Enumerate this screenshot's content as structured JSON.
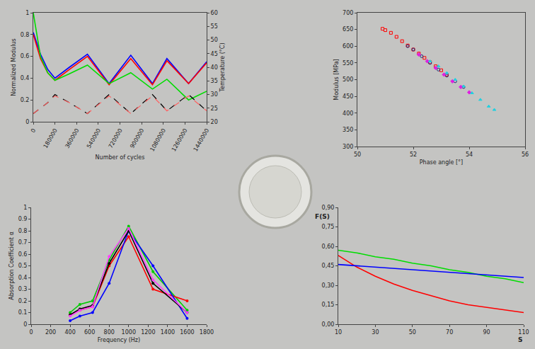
{
  "chart_data": [
    {
      "type": "line",
      "x_label": "Number of cycles",
      "y_label": "Normalized Modulus",
      "y2_label": "Temperature (°C)",
      "x": [
        0,
        60000,
        120000,
        180000,
        300000,
        450000,
        630000,
        810000,
        990000,
        1110000,
        1290000,
        1440000
      ],
      "series": [
        {
          "color": "#0000ff",
          "values": [
            0.82,
            0.62,
            0.48,
            0.4,
            0.5,
            0.62,
            0.35,
            0.61,
            0.35,
            0.58,
            0.35,
            0.55
          ]
        },
        {
          "color": "#ff0000",
          "values": [
            0.8,
            0.58,
            0.45,
            0.38,
            0.48,
            0.6,
            0.34,
            0.58,
            0.34,
            0.56,
            0.35,
            0.54
          ]
        },
        {
          "color": "#00dd00",
          "values": [
            1.0,
            0.6,
            0.45,
            0.38,
            0.44,
            0.52,
            0.35,
            0.45,
            0.3,
            0.39,
            0.2,
            0.28
          ]
        },
        {
          "color": "#000000",
          "axis": "y2",
          "line_style": "dashed",
          "values": [
            23,
            25,
            27,
            30,
            27,
            23,
            30,
            23,
            30,
            24,
            30,
            24
          ]
        },
        {
          "color": "#ff6060",
          "axis": "y2",
          "line_style": "dashed",
          "values": [
            23,
            25,
            27,
            29.5,
            27,
            23,
            29.5,
            23,
            29.5,
            24,
            29.5,
            24
          ]
        }
      ],
      "xlim": [
        0,
        1440000
      ],
      "xticks": [
        0,
        180000,
        360000,
        540000,
        720000,
        900000,
        1080000,
        1260000,
        1440000
      ],
      "ylim": [
        0,
        1
      ],
      "yticks": [
        0,
        0.2,
        0.4,
        0.6,
        0.8,
        1
      ],
      "y2lim": [
        20,
        60
      ],
      "y2ticks": [
        20,
        25,
        30,
        35,
        40,
        45,
        50,
        55,
        60
      ],
      "grid": false
    },
    {
      "type": "scatter",
      "x_label": "Phase angle [°]",
      "y_label": "Modulus [MPa]",
      "series": [
        {
          "color": "#ff0000",
          "marker": "square-open",
          "x": [
            50.9,
            51.0,
            51.2,
            51.4,
            51.6,
            51.8,
            52.0,
            52.2,
            52.4,
            52.6,
            52.8,
            53.0,
            53.2
          ],
          "values": [
            652,
            648,
            640,
            628,
            615,
            602,
            590,
            578,
            565,
            552,
            540,
            528,
            515
          ]
        },
        {
          "color": "#1f2a7a",
          "marker": "circle-open",
          "x": [
            51.8,
            52.0,
            52.3,
            52.6,
            52.9,
            53.2,
            53.5,
            53.8
          ],
          "values": [
            600,
            590,
            570,
            550,
            530,
            512,
            495,
            478
          ]
        },
        {
          "color": "#e020e0",
          "marker": "diamond",
          "x": [
            52.2,
            52.5,
            52.8,
            53.1,
            53.4,
            53.7,
            54.0
          ],
          "values": [
            575,
            555,
            535,
            515,
            495,
            478,
            462
          ]
        },
        {
          "color": "#20d0e0",
          "marker": "triangle-up",
          "x": [
            52.6,
            52.9,
            53.2,
            53.5,
            53.8,
            54.1,
            54.4,
            54.7,
            54.9
          ],
          "values": [
            555,
            540,
            520,
            500,
            480,
            460,
            440,
            420,
            410
          ]
        }
      ],
      "xlim": [
        50,
        56
      ],
      "xticks": [
        50,
        52,
        54,
        56
      ],
      "ylim": [
        300,
        700
      ],
      "yticks": [
        300,
        350,
        400,
        450,
        500,
        550,
        600,
        650,
        700
      ],
      "grid": false
    },
    {
      "type": "line",
      "x_label": "Frequency (Hz)",
      "y_label": "Absorption Coefficient α",
      "marker": "circle",
      "x": [
        400,
        500,
        630,
        800,
        1000,
        1250,
        1600
      ],
      "series": [
        {
          "color": "#00cc00",
          "values": [
            0.1,
            0.17,
            0.2,
            0.55,
            0.84,
            0.45,
            0.12
          ]
        },
        {
          "color": "#ff0000",
          "values": [
            0.08,
            0.12,
            0.15,
            0.5,
            0.75,
            0.3,
            0.2
          ]
        },
        {
          "color": "#0000ff",
          "values": [
            0.03,
            0.07,
            0.1,
            0.35,
            0.8,
            0.5,
            0.05
          ]
        },
        {
          "color": "#000000",
          "values": [
            0.08,
            0.13,
            0.16,
            0.52,
            0.8,
            0.35,
            0.1
          ]
        },
        {
          "color": "#ff40ff",
          "values": [
            0.07,
            0.12,
            0.15,
            0.58,
            0.82,
            0.38,
            0.1
          ]
        }
      ],
      "xlim": [
        0,
        1800
      ],
      "xticks": [
        0,
        200,
        400,
        600,
        800,
        1000,
        1200,
        1400,
        1600,
        1800
      ],
      "ylim": [
        0,
        1
      ],
      "yticks": [
        0,
        0.1,
        0.2,
        0.3,
        0.4,
        0.5,
        0.6,
        0.7,
        0.8,
        0.9,
        1
      ],
      "grid": false
    },
    {
      "type": "line",
      "x_label": "S",
      "y_label": "F(S)",
      "x": [
        10,
        20,
        30,
        40,
        50,
        60,
        70,
        80,
        90,
        100,
        110
      ],
      "series": [
        {
          "color": "#ff0000",
          "values": [
            0.53,
            0.44,
            0.37,
            0.31,
            0.26,
            0.22,
            0.18,
            0.15,
            0.13,
            0.11,
            0.09
          ]
        },
        {
          "color": "#00dd00",
          "values": [
            0.57,
            0.55,
            0.52,
            0.5,
            0.47,
            0.45,
            0.42,
            0.4,
            0.37,
            0.35,
            0.32
          ]
        },
        {
          "color": "#0000ff",
          "values": [
            0.46,
            0.45,
            0.44,
            0.43,
            0.42,
            0.41,
            0.4,
            0.39,
            0.38,
            0.37,
            0.36
          ]
        }
      ],
      "xlim": [
        10,
        110
      ],
      "xticks": [
        10,
        30,
        50,
        70,
        90,
        110
      ],
      "ylim": [
        0,
        0.9
      ],
      "yticks": [
        {
          "value": 0,
          "label": "0,00"
        },
        {
          "value": 0.15,
          "label": "0,15"
        },
        {
          "value": 0.3,
          "label": "0,30"
        },
        {
          "value": 0.45,
          "label": "0,45"
        },
        {
          "value": 0.6,
          "label": "0,60"
        },
        {
          "value": 0.75,
          "label": "0,75"
        },
        {
          "value": 0.9,
          "label": "0,90"
        }
      ],
      "grid": false
    }
  ]
}
